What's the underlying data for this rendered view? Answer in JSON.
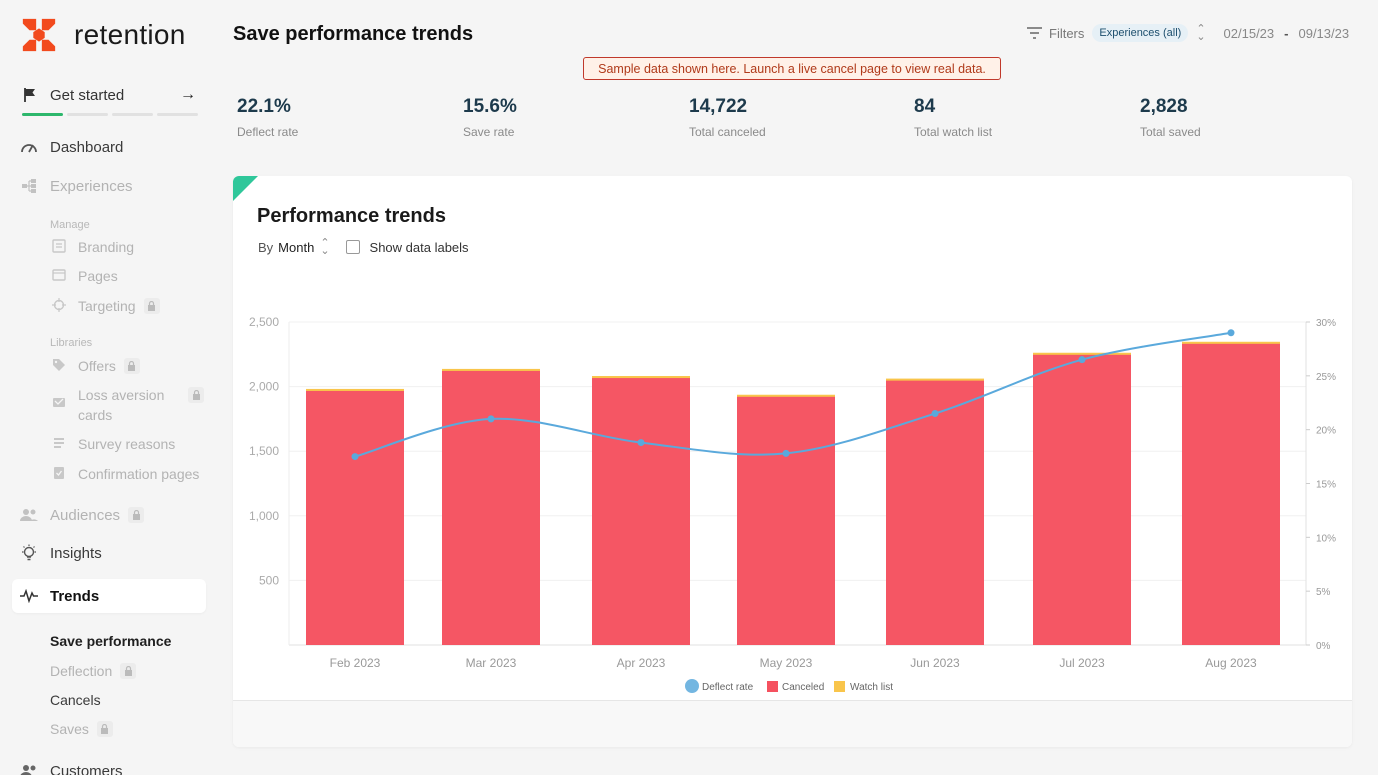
{
  "brand": {
    "name": "retention",
    "accent": "#f24a1d"
  },
  "sidebar": {
    "get_started": {
      "label": "Get started",
      "arrow": "→",
      "progress_done": 1,
      "progress_total": 4
    },
    "nav": {
      "dashboard": "Dashboard",
      "experiences": "Experiences",
      "audiences": "Audiences",
      "insights": "Insights",
      "trends": "Trends",
      "customers": "Customers"
    },
    "manage_heading": "Manage",
    "manage_items": [
      "Branding",
      "Pages",
      "Targeting"
    ],
    "libraries_heading": "Libraries",
    "library_items": [
      "Offers",
      "Loss aversion cards",
      "Survey reasons",
      "Confirmation pages"
    ],
    "trends_sub": [
      "Save performance",
      "Deflection",
      "Cancels",
      "Saves"
    ]
  },
  "header": {
    "title": "Save performance trends",
    "filters_label": "Filters",
    "filter_chip": "Experiences (all)",
    "date_start": "02/15/23",
    "date_sep": "-",
    "date_end": "09/13/23",
    "sample_banner": "Sample data shown here. Launch a live cancel page to view real data."
  },
  "stats": [
    {
      "value": "22.1%",
      "label": "Deflect rate"
    },
    {
      "value": "15.6%",
      "label": "Save rate"
    },
    {
      "value": "14,722",
      "label": "Total canceled"
    },
    {
      "value": "84",
      "label": "Total watch list"
    },
    {
      "value": "2,828",
      "label": "Total saved"
    }
  ],
  "card": {
    "title": "Performance trends",
    "by_label": "By",
    "by_value": "Month",
    "show_labels": "Show data labels"
  },
  "colors": {
    "canceled": "#f5515f",
    "watch_list": "#f9c54b",
    "deflect": "#5aa9dc"
  },
  "chart_data": {
    "type": "bar",
    "categories": [
      "Feb 2023",
      "Mar 2023",
      "Apr 2023",
      "May 2023",
      "Jun 2023",
      "Jul 2023",
      "Aug 2023"
    ],
    "series": [
      {
        "name": "Canceled",
        "type": "bar",
        "stack": "total",
        "axis": "left",
        "values": [
          1970,
          2125,
          2070,
          1925,
          2050,
          2250,
          2335
        ]
      },
      {
        "name": "Watch list",
        "type": "bar",
        "stack": "total",
        "axis": "left",
        "values": [
          12,
          12,
          12,
          12,
          12,
          12,
          12
        ]
      },
      {
        "name": "Deflect rate",
        "type": "line",
        "axis": "right",
        "values": [
          17.5,
          21.0,
          18.8,
          17.8,
          21.5,
          26.5,
          29.0
        ]
      }
    ],
    "y_left": {
      "ticks": [
        "500",
        "1,000",
        "1,500",
        "2,000",
        "2,500"
      ],
      "tick_values": [
        500,
        1000,
        1500,
        2000,
        2500
      ],
      "range": [
        0,
        2500
      ]
    },
    "y_right": {
      "ticks": [
        "0%",
        "5%",
        "10%",
        "15%",
        "20%",
        "25%",
        "30%"
      ],
      "tick_values": [
        0,
        5,
        10,
        15,
        20,
        25,
        30
      ],
      "range": [
        0,
        30
      ]
    },
    "legend": [
      "Deflect rate",
      "Canceled",
      "Watch list"
    ],
    "legend_position": "bottom",
    "grid": true
  }
}
